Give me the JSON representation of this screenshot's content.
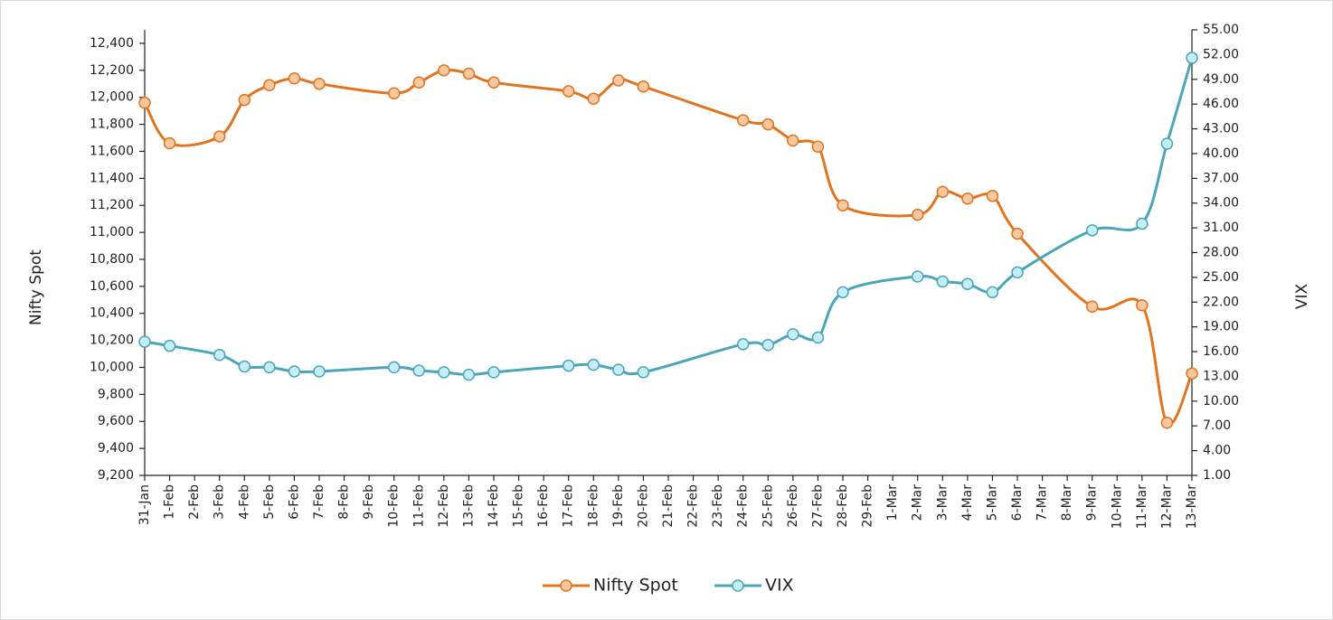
{
  "chart_data": {
    "type": "line",
    "xticks": [
      "31-Jan",
      "1-Feb",
      "2-Feb",
      "3-Feb",
      "4-Feb",
      "5-Feb",
      "6-Feb",
      "7-Feb",
      "8-Feb",
      "9-Feb",
      "10-Feb",
      "11-Feb",
      "12-Feb",
      "13-Feb",
      "14-Feb",
      "15-Feb",
      "16-Feb",
      "17-Feb",
      "18-Feb",
      "19-Feb",
      "20-Feb",
      "21-Feb",
      "22-Feb",
      "23-Feb",
      "24-Feb",
      "25-Feb",
      "26-Feb",
      "27-Feb",
      "28-Feb",
      "29-Feb",
      "1-Mar",
      "2-Mar",
      "3-Mar",
      "4-Mar",
      "5-Mar",
      "6-Mar",
      "7-Mar",
      "8-Mar",
      "9-Mar",
      "10-Mar",
      "11-Mar",
      "12-Mar",
      "13-Mar"
    ],
    "x": [
      "31-Jan",
      "1-Feb",
      "3-Feb",
      "4-Feb",
      "5-Feb",
      "6-Feb",
      "7-Feb",
      "10-Feb",
      "11-Feb",
      "12-Feb",
      "13-Feb",
      "14-Feb",
      "17-Feb",
      "18-Feb",
      "19-Feb",
      "20-Feb",
      "24-Feb",
      "25-Feb",
      "26-Feb",
      "27-Feb",
      "28-Feb",
      "2-Mar",
      "3-Mar",
      "4-Mar",
      "5-Mar",
      "6-Mar",
      "9-Mar",
      "11-Mar",
      "12-Mar",
      "13-Mar"
    ],
    "y_label": "Nifty Spot",
    "y2_label": "VIX",
    "ylim": [
      9200,
      12500
    ],
    "yticks": [
      {
        "value": 9200,
        "label": "9,200"
      },
      {
        "value": 9400,
        "label": "9,400"
      },
      {
        "value": 9600,
        "label": "9,600"
      },
      {
        "value": 9800,
        "label": "9,800"
      },
      {
        "value": 10000,
        "label": "10,000"
      },
      {
        "value": 10200,
        "label": "10,200"
      },
      {
        "value": 10400,
        "label": "10,400"
      },
      {
        "value": 10600,
        "label": "10,600"
      },
      {
        "value": 10800,
        "label": "10,800"
      },
      {
        "value": 11000,
        "label": "11,000"
      },
      {
        "value": 11200,
        "label": "11,200"
      },
      {
        "value": 11400,
        "label": "11,400"
      },
      {
        "value": 11600,
        "label": "11,600"
      },
      {
        "value": 11800,
        "label": "11,800"
      },
      {
        "value": 12000,
        "label": "12,000"
      },
      {
        "value": 12200,
        "label": "12,200"
      },
      {
        "value": 12400,
        "label": "12,400"
      }
    ],
    "y2lim": [
      1,
      55
    ],
    "y2ticks": [
      {
        "value": 1,
        "label": "1.00"
      },
      {
        "value": 4,
        "label": "4.00"
      },
      {
        "value": 7,
        "label": "7.00"
      },
      {
        "value": 10,
        "label": "10.00"
      },
      {
        "value": 13,
        "label": "13.00"
      },
      {
        "value": 16,
        "label": "16.00"
      },
      {
        "value": 19,
        "label": "19.00"
      },
      {
        "value": 22,
        "label": "22.00"
      },
      {
        "value": 25,
        "label": "25.00"
      },
      {
        "value": 28,
        "label": "28.00"
      },
      {
        "value": 31,
        "label": "31.00"
      },
      {
        "value": 34,
        "label": "34.00"
      },
      {
        "value": 37,
        "label": "37.00"
      },
      {
        "value": 40,
        "label": "40.00"
      },
      {
        "value": 43,
        "label": "43.00"
      },
      {
        "value": 46,
        "label": "46.00"
      },
      {
        "value": 49,
        "label": "49.00"
      },
      {
        "value": 52,
        "label": "52.00"
      },
      {
        "value": 55,
        "label": "55.00"
      }
    ],
    "series": [
      {
        "name": "Nifty Spot",
        "color": "#e07520",
        "marker_fill": "#f8c9a0",
        "values": [
          11960,
          11660,
          11710,
          11980,
          12090,
          12140,
          12100,
          12030,
          12110,
          12200,
          12175,
          12110,
          12045,
          11990,
          12125,
          12080,
          11830,
          11800,
          11680,
          11635,
          11200,
          11130,
          11300,
          11250,
          11270,
          10990,
          10450,
          10460,
          9590,
          9955
        ]
      },
      {
        "name": "VIX",
        "color": "#4aa6b8",
        "marker_fill": "#c6eef6",
        "axis": "y2",
        "values": [
          17.2,
          16.7,
          15.6,
          14.2,
          14.1,
          13.6,
          13.6,
          14.1,
          13.7,
          13.5,
          13.2,
          13.5,
          14.3,
          14.4,
          13.8,
          13.5,
          16.9,
          16.8,
          18.1,
          17.7,
          23.2,
          25.1,
          24.5,
          24.2,
          23.2,
          25.6,
          30.7,
          31.5,
          41.2,
          51.6
        ]
      }
    ]
  }
}
